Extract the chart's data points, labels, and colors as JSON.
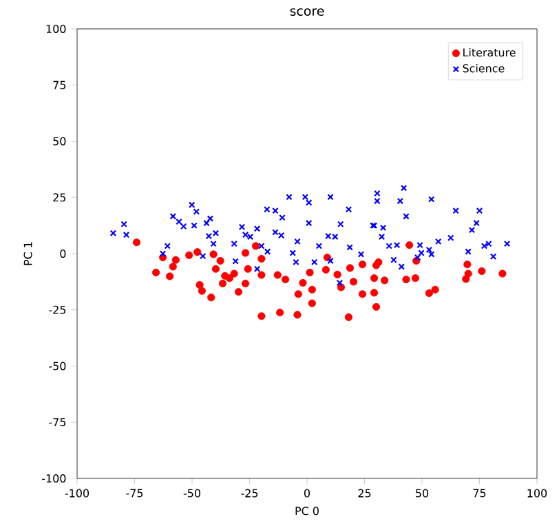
{
  "chart_data": {
    "type": "scatter",
    "title": "score",
    "xlabel": "PC 0",
    "ylabel": "PC 1",
    "xlim": [
      -100,
      100
    ],
    "ylim": [
      -100,
      100
    ],
    "xticks": [
      -100,
      -75,
      -50,
      -25,
      0,
      25,
      50,
      75,
      100
    ],
    "yticks": [
      -100,
      -75,
      -50,
      -25,
      0,
      25,
      50,
      75,
      100
    ],
    "legend": "top right",
    "series": [
      {
        "name": "Literature",
        "color": "#ff0000",
        "marker": "circle",
        "x": [
          -74.1,
          -65.7,
          -62.7,
          -59.7,
          -58.3,
          -57.1,
          -51.3,
          -47.7,
          -40.7,
          -37.7,
          -39.7,
          -35.7,
          -46.7,
          -45.7,
          -41.7,
          -36.7,
          -33.7,
          -26.8,
          -22.3,
          -19.8,
          -31.7,
          -25.7,
          -29.8,
          -26.8,
          -19.8,
          -12.8,
          -9.4,
          1.2,
          8.8,
          8.2,
          13.2,
          14.8,
          -1.8,
          2.2,
          -3.8,
          2.2,
          -19.8,
          -11.8,
          -4.2,
          18.7,
          24.1,
          20.2,
          24.1,
          18.1,
          29.2,
          29.2,
          44.5,
          31.1,
          30.1,
          33.7,
          30.1,
          43.1,
          47.1,
          47.5,
          53.1,
          55.7,
          69.7,
          70.1,
          69.1,
          76.0,
          85.0
        ],
        "values": [
          5.0,
          -8.4,
          -1.7,
          -10.1,
          -5.8,
          -2.8,
          -0.7,
          0.7,
          -0.3,
          -3.2,
          -6.8,
          -9.9,
          -13.9,
          -16.6,
          -19.5,
          -13.3,
          -10.9,
          0.3,
          3.4,
          -2.3,
          -8.9,
          -6.8,
          -17.0,
          -13.3,
          -9.5,
          -9.5,
          -11.5,
          -8.4,
          -1.7,
          -7.2,
          -9.3,
          -15.0,
          -13.0,
          -16.0,
          -18.0,
          -22.1,
          -27.8,
          -26.2,
          -27.2,
          -6.4,
          -4.8,
          -12.5,
          -18.0,
          -28.3,
          -10.9,
          -17.4,
          3.8,
          -3.8,
          -5.2,
          -11.9,
          -23.7,
          -11.5,
          -10.9,
          -3.2,
          -17.6,
          -16.0,
          -4.8,
          -8.9,
          -11.3,
          -7.8,
          -8.9
        ]
      },
      {
        "name": "Science",
        "color": "#0000ff",
        "marker": "cross",
        "x": [
          -84.3,
          -79.6,
          -78.6,
          -60.7,
          -62.7,
          -58.3,
          -55.7,
          -53.7,
          -50.1,
          -48.1,
          -49.1,
          -43.7,
          -42.1,
          -42.7,
          -39.7,
          -40.7,
          -45.3,
          -7.8,
          -0.8,
          0.8,
          10.2,
          -17.4,
          -13.8,
          -10.8,
          18.1,
          0.8,
          14.6,
          -28.3,
          -21.7,
          -26.8,
          -24.7,
          -13.8,
          -11.2,
          -31.7,
          -19.8,
          -17.2,
          -4.2,
          -6.2,
          -4.8,
          5.2,
          9.2,
          12.2,
          3.2,
          10.2,
          18.6,
          23.5,
          -31.1,
          -21.7,
          14.2,
          28.7,
          30.5,
          30.5,
          42.1,
          40.5,
          54.1,
          43.1,
          64.7,
          75.0,
          73.7,
          71.7,
          29.2,
          33.1,
          32.5,
          35.7,
          39.1,
          49.1,
          49.7,
          53.1,
          54.1,
          57.1,
          62.5,
          37.7,
          41.1,
          48.1,
          70.1,
          77.1,
          79.0,
          81.0,
          87.0
        ],
        "values": [
          9.1,
          13.1,
          8.4,
          3.4,
          0.0,
          16.6,
          14.2,
          12.1,
          21.7,
          18.7,
          12.5,
          13.6,
          15.6,
          7.8,
          9.1,
          4.4,
          -1.1,
          25.2,
          25.2,
          22.7,
          25.2,
          19.7,
          19.1,
          16.0,
          19.7,
          13.6,
          13.1,
          11.9,
          11.1,
          8.4,
          7.5,
          9.5,
          8.1,
          4.4,
          3.4,
          0.9,
          5.4,
          0.3,
          -3.8,
          3.4,
          7.8,
          7.5,
          -3.8,
          -3.2,
          2.8,
          -0.3,
          -3.4,
          -6.8,
          -13.0,
          12.5,
          26.8,
          23.4,
          29.2,
          23.4,
          24.2,
          16.6,
          19.1,
          19.1,
          13.6,
          10.5,
          12.5,
          11.5,
          7.5,
          3.4,
          3.8,
          3.8,
          0.3,
          1.7,
          -0.3,
          5.4,
          7.0,
          -2.8,
          -5.8,
          -1.7,
          0.9,
          3.4,
          4.4,
          -1.3,
          4.4
        ]
      }
    ]
  }
}
